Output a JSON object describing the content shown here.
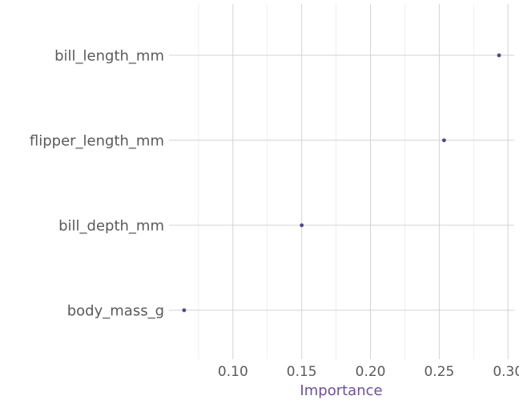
{
  "chart_data": {
    "type": "scatter",
    "orientation": "horizontal",
    "title": "",
    "xlabel": "Importance",
    "ylabel": "",
    "categories": [
      "bill_length_mm",
      "flipper_length_mm",
      "bill_depth_mm",
      "body_mass_g"
    ],
    "values": [
      0.2935,
      0.2535,
      0.15,
      0.0645
    ],
    "xticks": [
      0.1,
      0.15,
      0.2,
      0.25,
      0.3
    ],
    "xtick_labels": [
      "0.10",
      "0.15",
      "0.20",
      "0.25",
      "0.30"
    ],
    "xlim": [
      0.0535,
      0.3045
    ],
    "grid": true,
    "legend": "none",
    "colors": {
      "point": "#4b4a8a",
      "axis_title": "#6f4f9b",
      "tick_label": "#5a5a5a",
      "grid_major": "#d3d3d3",
      "grid_minor": "#ececec"
    }
  }
}
